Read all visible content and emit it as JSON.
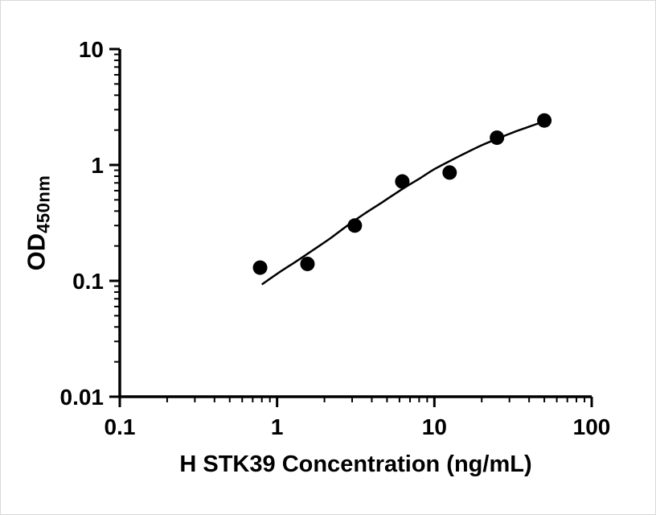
{
  "page": {
    "background_color": "#ffffff"
  },
  "chart_data": {
    "type": "scatter",
    "subtype": "standard-curve-with-fit-line",
    "title": "",
    "xlabel": "H STK39 Concentration (ng/mL)",
    "ylabel": "OD",
    "ylabel_subscript": "450nm",
    "x_scale": "log",
    "y_scale": "log",
    "xlim": [
      0.1,
      100
    ],
    "ylim": [
      0.01,
      10
    ],
    "x_major_ticks": [
      0.1,
      1,
      10,
      100
    ],
    "x_tick_labels": [
      "0.1",
      "1",
      "10",
      "100"
    ],
    "y_major_ticks": [
      0.01,
      0.1,
      1,
      10
    ],
    "y_tick_labels": [
      "0.01",
      "0.1",
      "1",
      "10"
    ],
    "minor_ticks": true,
    "grid": false,
    "legend": false,
    "axis_color": "#000000",
    "marker_color": "#000000",
    "line_color": "#000000",
    "points": {
      "x": [
        0.78,
        1.56,
        3.12,
        6.25,
        12.5,
        25,
        50
      ],
      "y": [
        0.13,
        0.14,
        0.3,
        0.72,
        0.86,
        1.72,
        2.42
      ]
    },
    "fit_curve": {
      "x": [
        0.8,
        1.0,
        1.3,
        1.7,
        2.2,
        2.8,
        3.6,
        4.7,
        6.25,
        8.0,
        10,
        12.5,
        16,
        20,
        25,
        32,
        40,
        50
      ],
      "y": [
        0.093,
        0.115,
        0.145,
        0.185,
        0.235,
        0.3,
        0.38,
        0.48,
        0.62,
        0.76,
        0.92,
        1.08,
        1.28,
        1.48,
        1.68,
        1.92,
        2.14,
        2.38
      ]
    }
  }
}
